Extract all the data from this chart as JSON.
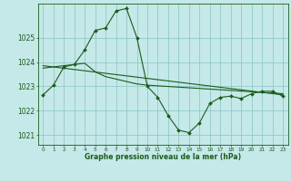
{
  "xlabel": "Graphe pression niveau de la mer (hPa)",
  "bg_color": "#c5e8e8",
  "grid_color": "#88c4c4",
  "line_color": "#1a5c1a",
  "text_color": "#1a5c1a",
  "ylim": [
    1020.6,
    1026.4
  ],
  "yticks": [
    1021,
    1022,
    1023,
    1024,
    1025
  ],
  "xticks": [
    0,
    1,
    2,
    3,
    4,
    5,
    6,
    7,
    8,
    9,
    10,
    11,
    12,
    13,
    14,
    15,
    16,
    17,
    18,
    19,
    20,
    21,
    22,
    23
  ],
  "series_main": {
    "x": [
      0,
      1,
      2,
      3,
      4,
      5,
      6,
      7,
      8,
      9,
      10,
      11,
      12,
      13,
      14,
      15,
      16,
      17,
      18,
      19,
      20,
      21,
      22,
      23
    ],
    "y": [
      1022.65,
      1023.05,
      1023.8,
      1023.9,
      1024.5,
      1025.3,
      1025.4,
      1026.1,
      1026.2,
      1025.0,
      1023.0,
      1022.55,
      1021.8,
      1021.2,
      1021.1,
      1021.5,
      1022.3,
      1022.55,
      1022.6,
      1022.5,
      1022.7,
      1022.8,
      1022.8,
      1022.6
    ]
  },
  "series_smooth": {
    "x": [
      0,
      1,
      2,
      3,
      4,
      5,
      6,
      7,
      8,
      9,
      10,
      23
    ],
    "y": [
      1023.75,
      1023.8,
      1023.85,
      1023.9,
      1023.95,
      1023.6,
      1023.4,
      1023.3,
      1023.2,
      1023.1,
      1023.05,
      1022.7
    ]
  },
  "trend_line": {
    "x": [
      0,
      23
    ],
    "y": [
      1023.85,
      1022.65
    ]
  }
}
